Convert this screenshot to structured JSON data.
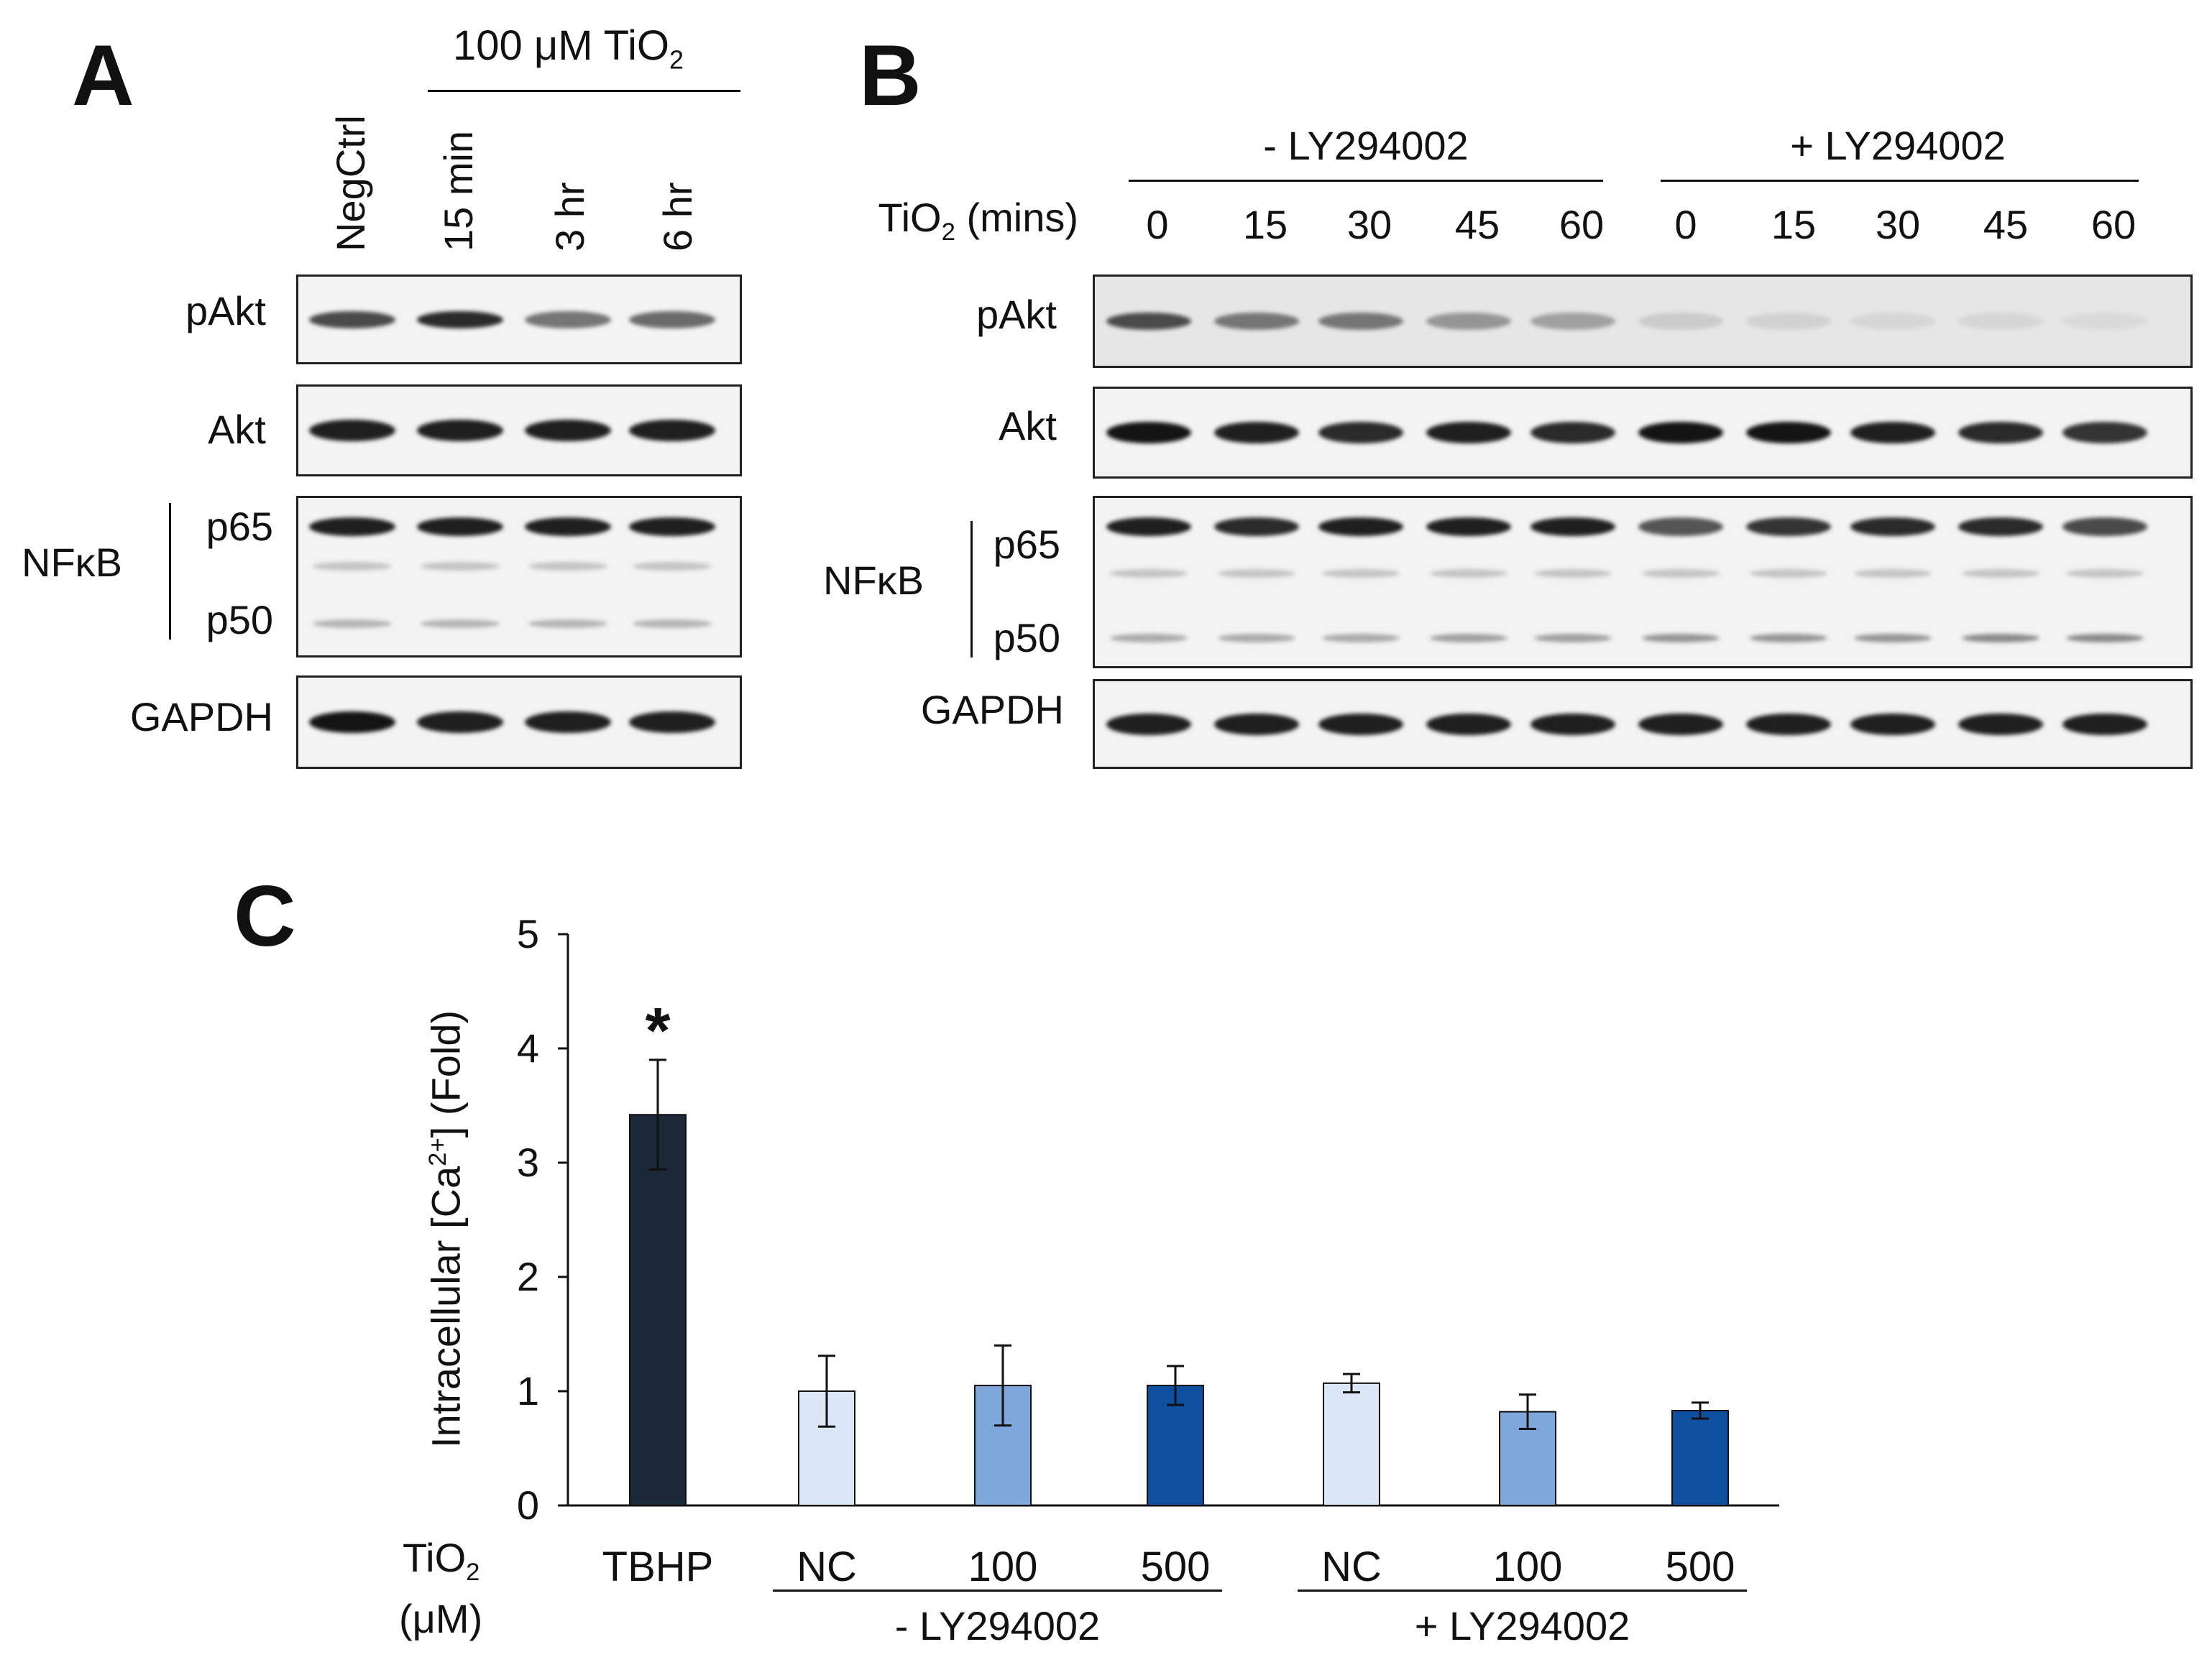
{
  "panelA": {
    "letter": "A",
    "treatment": "100 μM TiO",
    "treatment_sub": "2",
    "lanes": [
      "NegCtrl",
      "15 min",
      "3 hr",
      "6 hr"
    ],
    "rows": {
      "pakt": "pAkt",
      "akt": "Akt",
      "nfkb": "NFκB",
      "p65": "p65",
      "p50": "p50",
      "gapdh": "GAPDH"
    },
    "band_intensity": {
      "pakt": [
        0.75,
        0.9,
        0.55,
        0.6
      ],
      "akt": [
        0.95,
        0.95,
        0.95,
        0.95
      ],
      "p65": [
        0.95,
        0.95,
        0.95,
        0.95
      ],
      "p50": [
        0.25,
        0.25,
        0.25,
        0.25
      ],
      "gapdh": [
        1,
        0.95,
        0.95,
        0.95
      ]
    }
  },
  "panelB": {
    "letter": "B",
    "group_minus": "- LY294002",
    "group_plus": "+ LY294002",
    "time_label_pre": "TiO",
    "time_label_sub": "2",
    "time_label_post": " (mins)",
    "times": [
      "0",
      "15",
      "30",
      "45",
      "60",
      "0",
      "15",
      "30",
      "45",
      "60"
    ],
    "rows": {
      "pakt": "pAkt",
      "akt": "Akt",
      "nfkb": "NFκB",
      "p65": "p65",
      "p50": "p50",
      "gapdh": "GAPDH"
    },
    "band_intensity": {
      "pakt": [
        0.75,
        0.55,
        0.55,
        0.4,
        0.35,
        0.15,
        0.12,
        0.1,
        0.1,
        0.08
      ],
      "akt": [
        1,
        0.95,
        0.9,
        0.95,
        0.9,
        1,
        1,
        0.95,
        0.9,
        0.85
      ],
      "p65": [
        0.95,
        0.9,
        0.95,
        0.95,
        0.95,
        0.7,
        0.85,
        0.9,
        0.9,
        0.75
      ],
      "p50": [
        0.3,
        0.3,
        0.3,
        0.35,
        0.35,
        0.4,
        0.4,
        0.4,
        0.45,
        0.45
      ],
      "gapdh": [
        0.95,
        0.95,
        0.95,
        0.95,
        0.95,
        0.95,
        0.95,
        0.95,
        0.95,
        0.95
      ]
    }
  },
  "panelC": {
    "letter": "C",
    "ylabel_pre": "Intracellular [Ca",
    "ylabel_sup": "2+",
    "ylabel_post": "] (Fold)",
    "xaxis_title_pre": "TiO",
    "xaxis_title_sub": "2",
    "xaxis_title_unit": "(μM)",
    "group_minus": "- LY294002",
    "group_plus": "+ LY294002",
    "significance_marker": "*"
  },
  "chart_data": {
    "type": "bar",
    "categories": [
      "TBHP",
      "NC",
      "100",
      "500",
      "NC",
      "100",
      "500"
    ],
    "values": [
      3.42,
      1.0,
      1.05,
      1.05,
      1.07,
      0.82,
      0.83
    ],
    "errors": [
      0.48,
      0.31,
      0.35,
      0.17,
      0.08,
      0.15,
      0.07
    ],
    "colors": [
      "#1b2838",
      "#dbe7f6",
      "#7ea7dc",
      "#0f4fa0",
      "#dbe7f6",
      "#7ea7dc",
      "#0f4fa0"
    ],
    "ylim": [
      0,
      5
    ],
    "yticks": [
      "0",
      "1",
      "2",
      "3",
      "4",
      "5"
    ],
    "xlabel": "TiO2 (μM)",
    "ylabel": "Intracellular [Ca2+] (Fold)",
    "annotations": [
      "*"
    ],
    "grid": false
  }
}
